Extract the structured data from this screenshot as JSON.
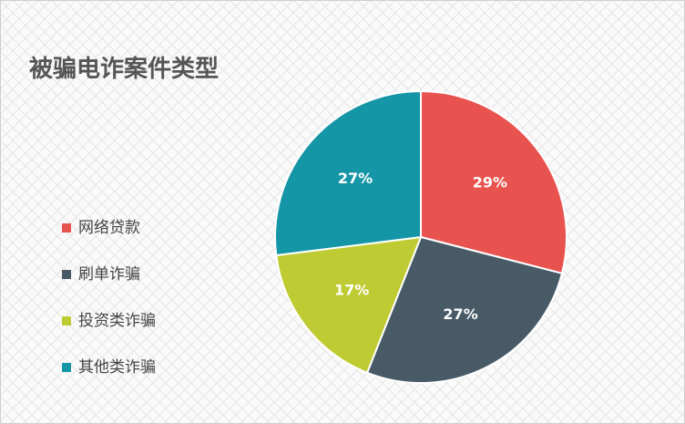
{
  "chart_data": {
    "type": "pie",
    "title": "被骗电诈案件类型",
    "categories": [
      "网络贷款",
      "刷单诈骗",
      "投资类诈骗",
      "其他类诈骗"
    ],
    "values": [
      29,
      27,
      17,
      27
    ],
    "value_labels": [
      "29%",
      "27%",
      "17%",
      "27%"
    ],
    "colors": [
      "#e8524f",
      "#475a66",
      "#bfcb32",
      "#1596a6"
    ],
    "legend": "left"
  }
}
